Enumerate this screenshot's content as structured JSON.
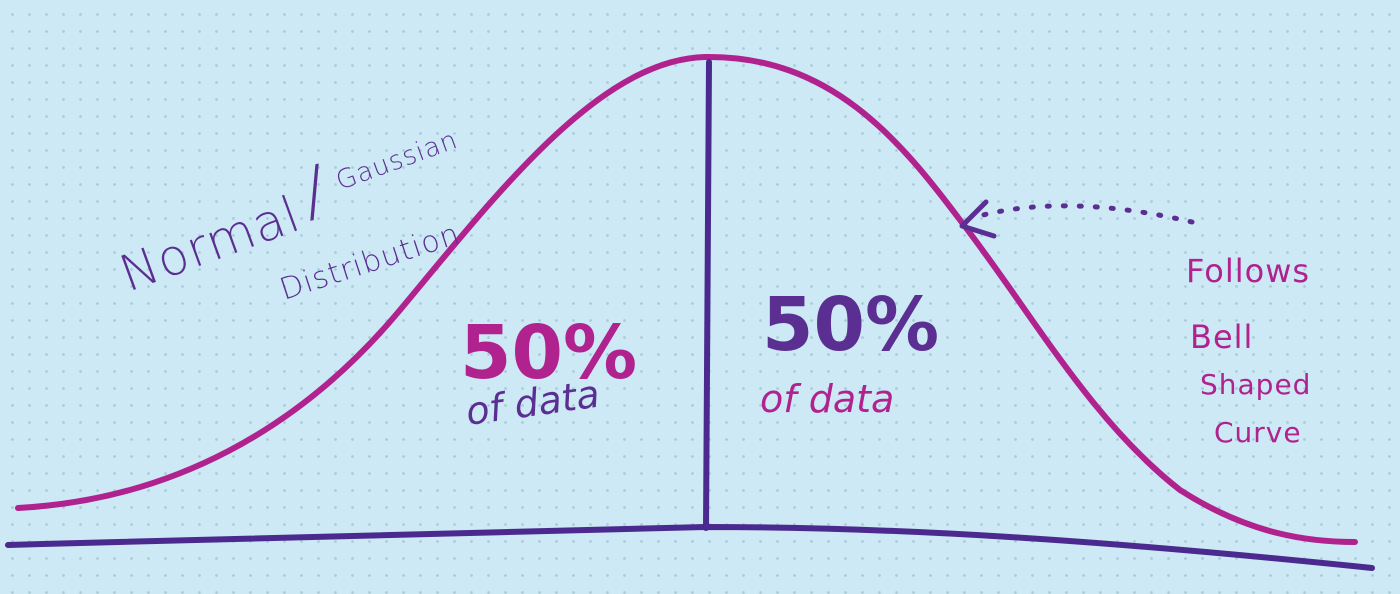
{
  "title": {
    "word1": "Normal",
    "separator": "/",
    "word2": "Gaussian",
    "word3": "Distribution"
  },
  "left_region": {
    "percent": "50%",
    "caption": "of data"
  },
  "right_region": {
    "percent": "50%",
    "caption": "of data"
  },
  "annotation": {
    "line1": "Follows",
    "line2": "Bell",
    "line3": "Shaped",
    "line4": "Curve"
  },
  "colors": {
    "background": "#cde9f5",
    "curve": "#b0238f",
    "axis": "#4a2a8e",
    "mean_line": "#4a2a8e",
    "title_text": "#5b2f91",
    "left_percent": "#b0238f",
    "right_percent": "#5b2f91",
    "captions": "#b0238f",
    "annotation_text": "#b0238f",
    "arrow": "#5b2f91"
  }
}
